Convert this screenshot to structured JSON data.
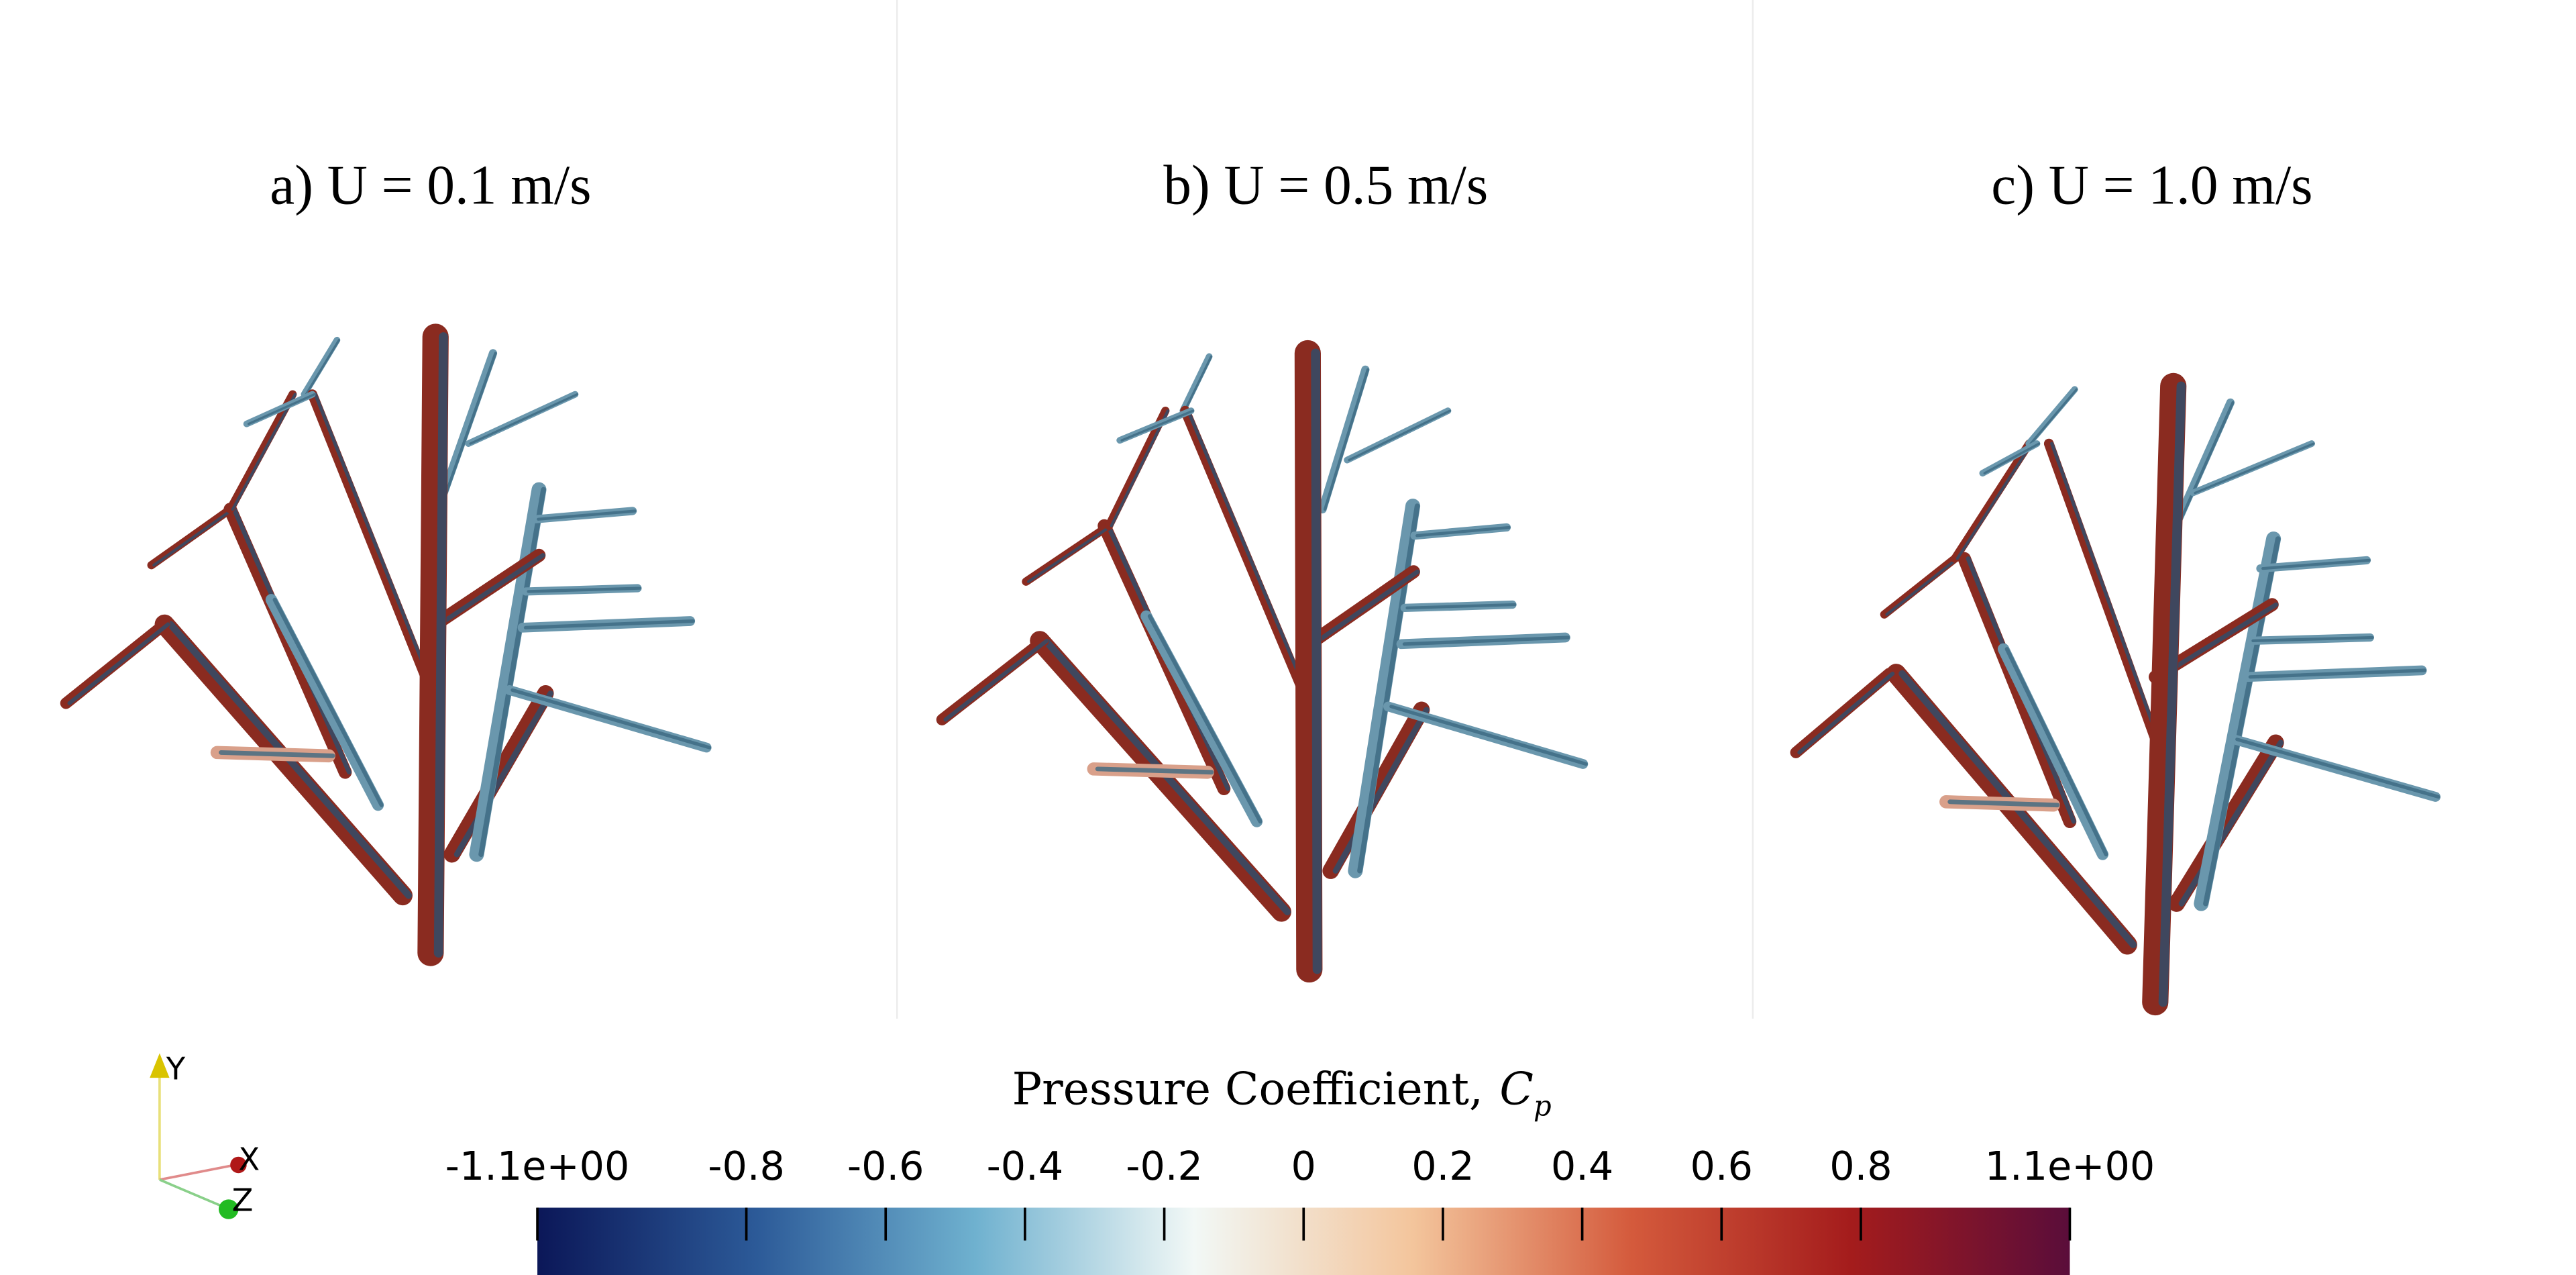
{
  "panels": [
    {
      "title": "a) U = 0.1 m/s"
    },
    {
      "title": "b) U = 0.5 m/s"
    },
    {
      "title": "c) U = 1.0 m/s"
    }
  ],
  "chart_data": {
    "type": "colorbar",
    "title": "Pressure Coefficient,",
    "symbol": "C",
    "subscript": "p",
    "xlim": [
      -1.1,
      1.1
    ],
    "xticks": [
      {
        "value": -1.1,
        "label": "-1.1e+00"
      },
      -0.8,
      -0.6,
      -0.4,
      -0.2,
      0,
      0.2,
      0.4,
      0.6,
      0.8,
      {
        "value": 1.1,
        "label": "1.1e+00"
      }
    ],
    "colormap": [
      "#0b1758",
      "#2c5a98",
      "#6fb1cf",
      "#f2f8f6",
      "#f3c59c",
      "#d45a3c",
      "#a41c1c",
      "#5a0d3a"
    ]
  },
  "orientation_axes": {
    "x": "X",
    "y": "Y",
    "z": "Z"
  }
}
